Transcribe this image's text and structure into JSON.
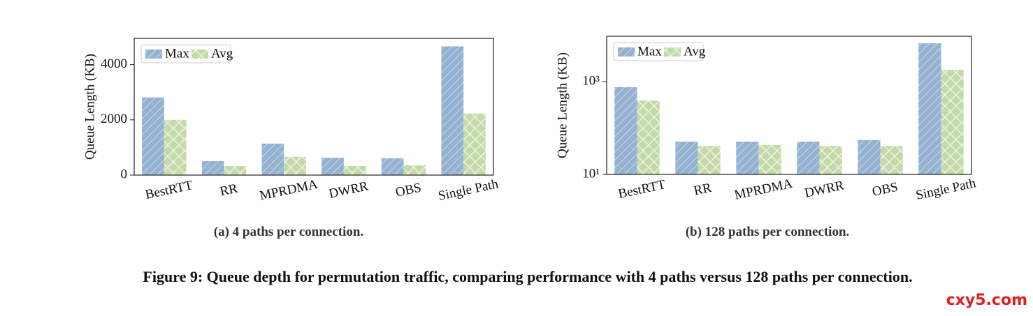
{
  "chart_data": [
    {
      "type": "bar",
      "ylabel": "Queue Length (KB)",
      "caption": "(a) 4 paths per connection.",
      "categories": [
        "BestRTT",
        "RR",
        "MPRDMA",
        "DWRR",
        "OBS",
        "Single Path"
      ],
      "series": [
        {
          "name": "Max",
          "color": "#94b2d1",
          "values": [
            2810,
            506,
            1140,
            630,
            610,
            4660
          ]
        },
        {
          "name": "Avg",
          "color": "#c4daa8",
          "values": [
            2000,
            330,
            660,
            330,
            355,
            2230
          ]
        }
      ],
      "ylim": [
        0,
        4950
      ],
      "yticks": [
        0,
        2000,
        4000
      ],
      "legend": "upper left"
    },
    {
      "type": "bar",
      "ylabel": "Queue Length (KB)",
      "caption": "(b) 128 paths per connection.",
      "log_scale": true,
      "categories": [
        "BestRTT",
        "RR",
        "MPRDMA",
        "DWRR",
        "OBS",
        "Single Path"
      ],
      "series": [
        {
          "name": "Max",
          "color": "#94b2d1",
          "values": [
            760,
            51,
            51,
            51,
            55,
            6700
          ]
        },
        {
          "name": "Avg",
          "color": "#c4daa8",
          "values": [
            390,
            41,
            43,
            41,
            41,
            1800
          ]
        }
      ],
      "ylim": [
        10,
        9500
      ],
      "yticks": [
        {
          "value": 10,
          "label": "10¹"
        },
        {
          "value": 1000,
          "label": "10³"
        }
      ],
      "legend": "upper left"
    }
  ],
  "figure_caption": "Figure 9: Queue depth for permutation traffic, comparing performance with 4 paths versus 128 paths per connection.",
  "watermark": "cxy5.com"
}
